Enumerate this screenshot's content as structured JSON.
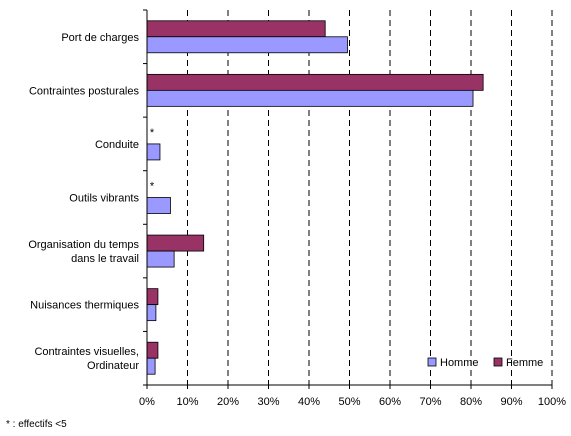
{
  "chart_data": {
    "type": "bar",
    "orientation": "horizontal",
    "categories": [
      [
        "Port de charges"
      ],
      [
        "Contraintes posturales"
      ],
      [
        "Conduite"
      ],
      [
        "Outils vibrants"
      ],
      [
        "Organisation du temps",
        "dans le travail"
      ],
      [
        "Nuisances thermiques"
      ],
      [
        "Contraintes visuelles,",
        "Ordinateur"
      ]
    ],
    "series": [
      {
        "name": "Femme",
        "color": "#993366",
        "values": [
          44,
          83,
          null,
          null,
          14,
          2.7,
          2.7
        ]
      },
      {
        "name": "Homme",
        "color": "#9999FF",
        "values": [
          49.5,
          80.5,
          3.2,
          5.8,
          6.7,
          2.2,
          2.0
        ]
      }
    ],
    "markers": [
      "",
      "",
      "*",
      "*",
      "",
      "",
      ""
    ],
    "xlim": [
      0,
      100
    ],
    "xticks": [
      "0%",
      "10%",
      "20%",
      "30%",
      "40%",
      "50%",
      "60%",
      "70%",
      "80%",
      "90%",
      "100%"
    ],
    "grid": "vertical dashed",
    "legend_position": "bottom-right",
    "legend": [
      "Homme",
      "Femme"
    ]
  },
  "footnote": "* : effectifs <5"
}
